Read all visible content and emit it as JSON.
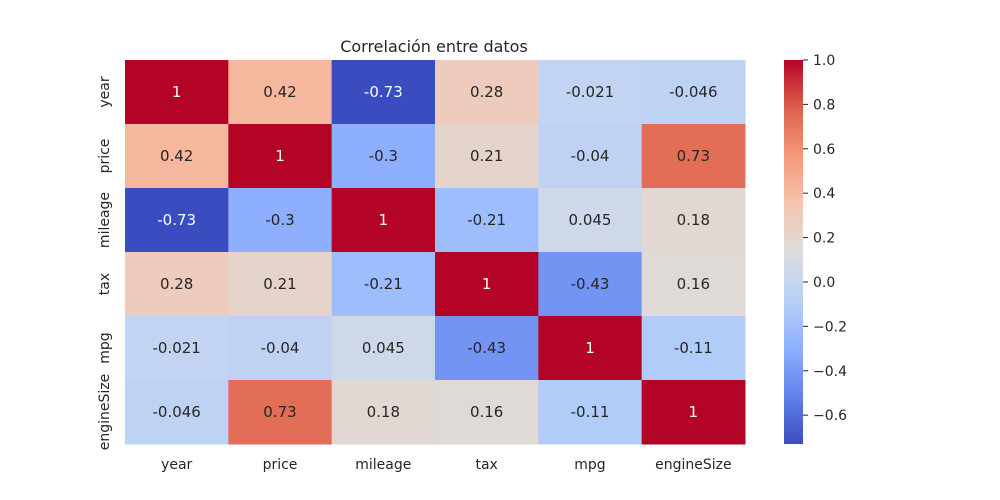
{
  "chart_data": {
    "type": "heatmap",
    "title": "Correlación entre datos",
    "x_labels": [
      "year",
      "price",
      "mileage",
      "tax",
      "mpg",
      "engineSize"
    ],
    "y_labels": [
      "year",
      "price",
      "mileage",
      "tax",
      "mpg",
      "engineSize"
    ],
    "values": [
      [
        1,
        0.42,
        -0.73,
        0.28,
        -0.021,
        -0.046
      ],
      [
        0.42,
        1,
        -0.3,
        0.21,
        -0.04,
        0.73
      ],
      [
        -0.73,
        -0.3,
        1,
        -0.21,
        0.045,
        0.18
      ],
      [
        0.28,
        0.21,
        -0.21,
        1,
        -0.43,
        0.16
      ],
      [
        -0.021,
        -0.04,
        0.045,
        -0.43,
        1,
        -0.11
      ],
      [
        -0.046,
        0.73,
        0.18,
        0.16,
        -0.11,
        1
      ]
    ],
    "annotations": [
      [
        "1",
        "0.42",
        "-0.73",
        "0.28",
        "-0.021",
        "-0.046"
      ],
      [
        "0.42",
        "1",
        "-0.3",
        "0.21",
        "-0.04",
        "0.73"
      ],
      [
        "-0.73",
        "-0.3",
        "1",
        "-0.21",
        "0.045",
        "0.18"
      ],
      [
        "0.28",
        "0.21",
        "-0.21",
        "1",
        "-0.43",
        "0.16"
      ],
      [
        "-0.021",
        "-0.04",
        "0.045",
        "-0.43",
        "1",
        "-0.11"
      ],
      [
        "-0.046",
        "0.73",
        "0.18",
        "0.16",
        "-0.11",
        "1"
      ]
    ],
    "colormap": "coolwarm",
    "color_range": [
      -0.73,
      1.0
    ],
    "colorbar_ticks": [
      1.0,
      0.8,
      0.6,
      0.4,
      0.2,
      0.0,
      -0.2,
      -0.4,
      -0.6
    ],
    "colorbar_tick_labels": [
      "1.0",
      "0.8",
      "0.6",
      "0.4",
      "0.2",
      "0.0",
      "−0.2",
      "−0.4",
      "−0.6"
    ],
    "grid": false
  }
}
